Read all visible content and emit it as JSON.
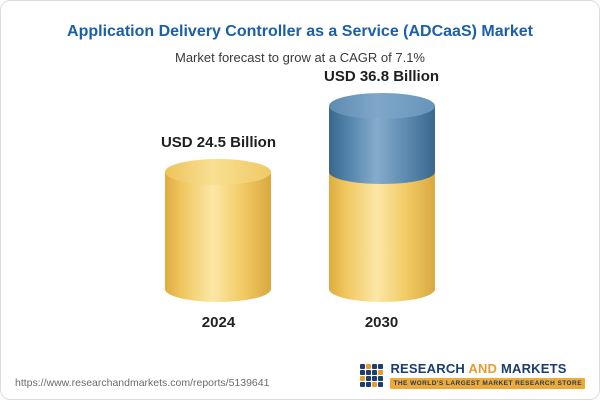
{
  "chart_data": {
    "type": "bar",
    "variant": "3d-cylinder",
    "title": "Application Delivery Controller as a Service (ADCaaS) Market",
    "subtitle": "Market forecast to grow at a CAGR of 7.1%",
    "categories": [
      "2024",
      "2030"
    ],
    "values": [
      24.5,
      36.8
    ],
    "unit": "USD Billion",
    "value_labels": [
      "USD 24.5 Billion",
      "USD 36.8 Billion"
    ],
    "cagr_percent": 7.1,
    "ylim": [
      0,
      36.8
    ],
    "grid": false,
    "legend_position": "none",
    "series_note": "2030 bar: gold base segment equals 2024 value (24.5), blue top segment is growth of 12.3",
    "colors": {
      "base_segment": "#F2CB6B",
      "growth_segment": "#4E80AB",
      "title_text": "#1A5FA9"
    }
  },
  "footer": {
    "url": "https://www.researchandmarkets.com/reports/5139641",
    "logo": {
      "word1": "RESEARCH",
      "word2": "AND",
      "word3": "MARKETS",
      "tagline": "THE WORLD'S LARGEST MARKET RESEARCH STORE"
    }
  }
}
